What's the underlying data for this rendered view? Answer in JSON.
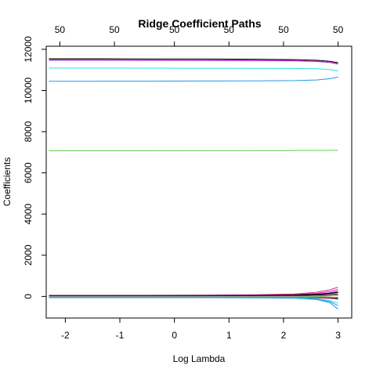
{
  "chart_data": {
    "type": "line",
    "title": "Ridge Coefficient Paths",
    "xlabel": "Log Lambda",
    "ylabel": "Coefficients",
    "xlim": [
      -2.35,
      3.25
    ],
    "ylim": [
      -1050,
      12150
    ],
    "x_ticks": [
      -2,
      -1,
      0,
      1,
      2,
      3
    ],
    "x_tick_labels": [
      "-2",
      "-1",
      "0",
      "1",
      "2",
      "3"
    ],
    "y_ticks": [
      0,
      2000,
      4000,
      6000,
      8000,
      10000,
      12000
    ],
    "y_tick_labels": [
      "0",
      "2000",
      "4000",
      "6000",
      "8000",
      "10000",
      "12000"
    ],
    "top_axis_ticks": [
      -2.1,
      -1.1,
      0,
      1,
      2,
      3
    ],
    "top_axis_labels": [
      "50",
      "50",
      "50",
      "50",
      "50",
      "50"
    ],
    "x": [
      -2.3,
      -1.5,
      -0.5,
      0.5,
      1.5,
      2.2,
      2.6,
      2.85,
      3.0
    ],
    "series": [
      {
        "color": "#000000",
        "values": [
          11540,
          11540,
          11535,
          11530,
          11520,
          11500,
          11470,
          11420,
          11350
        ]
      },
      {
        "color": "#d62e9b",
        "values": [
          11500,
          11500,
          11495,
          11490,
          11480,
          11460,
          11430,
          11380,
          11300
        ]
      },
      {
        "color": "#9b2fd6",
        "values": [
          11470,
          11470,
          11465,
          11460,
          11450,
          11440,
          11410,
          11360,
          11280
        ]
      },
      {
        "color": "#28e2e5",
        "values": [
          11090,
          11090,
          11085,
          11080,
          11075,
          11070,
          11060,
          11020,
          10950
        ]
      },
      {
        "color": "#2297e6",
        "values": [
          10450,
          10450,
          10455,
          10460,
          10470,
          10480,
          10510,
          10570,
          10650
        ]
      },
      {
        "color": "#61d04f",
        "values": [
          7070,
          7070,
          7072,
          7075,
          7078,
          7082,
          7088,
          7092,
          7095
        ]
      },
      {
        "color": "#d62e9b",
        "values": [
          50,
          50,
          55,
          60,
          80,
          120,
          200,
          320,
          450
        ]
      },
      {
        "color": "#d62e9b",
        "values": [
          30,
          30,
          35,
          40,
          55,
          90,
          150,
          240,
          340
        ]
      },
      {
        "color": "#9b2fd6",
        "values": [
          20,
          20,
          22,
          25,
          35,
          60,
          100,
          170,
          250
        ]
      },
      {
        "color": "#d62e9b",
        "values": [
          10,
          10,
          12,
          15,
          25,
          45,
          80,
          130,
          190
        ]
      },
      {
        "color": "#000000",
        "values": [
          40,
          40,
          40,
          42,
          50,
          70,
          110,
          160,
          200
        ]
      },
      {
        "color": "#000000",
        "values": [
          20,
          20,
          20,
          22,
          28,
          40,
          60,
          90,
          120
        ]
      },
      {
        "color": "#000000",
        "values": [
          0,
          0,
          0,
          2,
          5,
          10,
          20,
          35,
          50
        ]
      },
      {
        "color": "#000000",
        "values": [
          -10,
          -10,
          -10,
          -12,
          -15,
          -25,
          -40,
          -60,
          -80
        ]
      },
      {
        "color": "#000000",
        "values": [
          -20,
          -20,
          -20,
          -22,
          -28,
          -40,
          -70,
          -100,
          -130
        ]
      },
      {
        "color": "#2297e6",
        "values": [
          -40,
          -40,
          -40,
          -42,
          -50,
          -70,
          -130,
          -250,
          -450
        ]
      },
      {
        "color": "#28e2e5",
        "values": [
          -30,
          -30,
          -30,
          -32,
          -40,
          -60,
          -110,
          -200,
          -330
        ]
      },
      {
        "color": "#df536b",
        "values": [
          -15,
          -15,
          -15,
          -16,
          -20,
          -30,
          -55,
          -90,
          -140
        ]
      },
      {
        "color": "#61d04f",
        "values": [
          5,
          5,
          5,
          6,
          8,
          12,
          20,
          30,
          40
        ]
      },
      {
        "color": "#2297e6",
        "values": [
          -60,
          -60,
          -60,
          -62,
          -70,
          -90,
          -150,
          -300,
          -620
        ]
      },
      {
        "color": "#9e9e9e",
        "values": [
          -5,
          -5,
          -5,
          -6,
          -8,
          -12,
          -20,
          -30,
          -45
        ]
      }
    ]
  }
}
